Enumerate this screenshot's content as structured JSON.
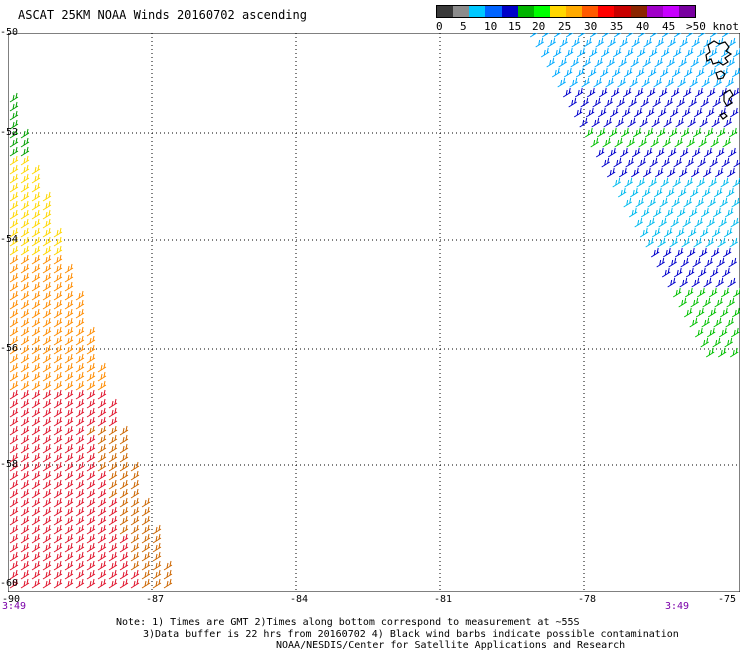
{
  "header": {
    "title": "ASCAT 25KM NOAA Winds 20160702 ascending"
  },
  "legend": {
    "labels": [
      "0",
      "5",
      "10",
      "15",
      "20",
      "25",
      "30",
      "35",
      "40",
      "45",
      ">50 knots"
    ],
    "colors": [
      "#3a3a3a",
      "#8c8c8c",
      "#00c8ff",
      "#0064ff",
      "#0000c8",
      "#00b400",
      "#00ff00",
      "#ffd700",
      "#ffaa00",
      "#ff5a00",
      "#ff0000",
      "#c80000",
      "#8b2500",
      "#a000c8",
      "#c800ff",
      "#7800a0"
    ]
  },
  "map": {
    "lat_labels": [
      "-50",
      "-52",
      "-54",
      "-56",
      "-58",
      "-60"
    ],
    "lon_labels": [
      "-90",
      "-87",
      "-84",
      "-81",
      "-78",
      "-75"
    ],
    "time_labels": [
      "3:49",
      "3:49"
    ],
    "grid": true
  },
  "footer": {
    "note_line1": "Note: 1) Times are GMT 2)Times along bottom correspond to measurement at ~55S",
    "note_line2": "3)Data buffer is 22 hrs from 20160702 4) Black wind barbs indicate possible contamination",
    "note_line3": "NOAA/NESDIS/Center for Satellite Applications and Research"
  }
}
